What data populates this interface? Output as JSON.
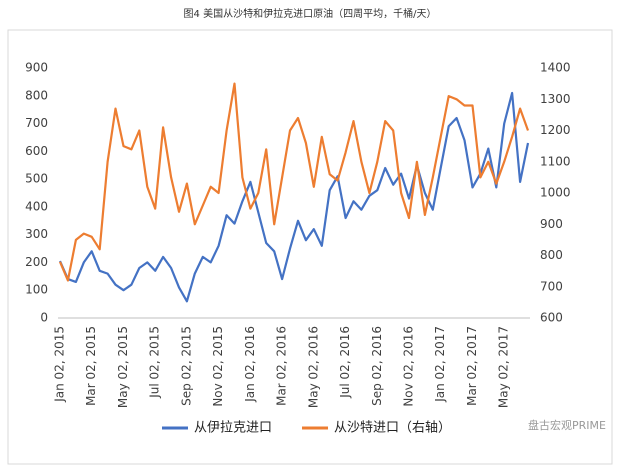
{
  "chart_data": {
    "type": "line",
    "title": "图4  美国从沙特和伊拉克进口原油（四周平均，千桶/天）",
    "categories": [
      "Jan 02, 2015",
      null,
      null,
      null,
      "Mar 02, 2015",
      null,
      null,
      null,
      "May 02, 2015",
      null,
      null,
      null,
      "Jul 02, 2015",
      null,
      null,
      null,
      "Sep 02, 2015",
      null,
      null,
      null,
      "Nov 02, 2015",
      null,
      null,
      null,
      "Jan 02, 2016",
      null,
      null,
      null,
      "Mar 02, 2016",
      null,
      null,
      null,
      "May 02, 2016",
      null,
      null,
      null,
      "Jul 02, 2016",
      null,
      null,
      null,
      "Sep 02, 2016",
      null,
      null,
      null,
      "Nov 02, 2016",
      null,
      null,
      null,
      "Jan 02, 2017",
      null,
      null,
      null,
      "Mar 02, 2017",
      null,
      null,
      null,
      "May 02, 2017",
      null,
      null,
      null
    ],
    "series": [
      {
        "name": "从伊拉克进口",
        "color": "#4472c4",
        "values": [
          205,
          140,
          130,
          200,
          240,
          170,
          160,
          120,
          100,
          120,
          180,
          200,
          170,
          220,
          180,
          110,
          60,
          160,
          220,
          200,
          260,
          370,
          340,
          420,
          490,
          380,
          270,
          240,
          140,
          250,
          350,
          280,
          320,
          260,
          460,
          510,
          360,
          420,
          390,
          440,
          460,
          540,
          480,
          520,
          430,
          550,
          450,
          390,
          540,
          690,
          720,
          640,
          470,
          520,
          610,
          470,
          700,
          810,
          490,
          630
        ]
      },
      {
        "name": "从沙特进口（右轴）",
        "color": "#ed7d31",
        "axis": "y2",
        "values": [
          780,
          720,
          850,
          870,
          860,
          820,
          1100,
          1270,
          1150,
          1140,
          1200,
          1020,
          950,
          1210,
          1050,
          940,
          1030,
          900,
          960,
          1020,
          1000,
          1200,
          1350,
          1050,
          950,
          1000,
          1140,
          900,
          1050,
          1200,
          1240,
          1160,
          1020,
          1180,
          1060,
          1040,
          1130,
          1230,
          1100,
          1000,
          1100,
          1230,
          1200,
          1000,
          920,
          1100,
          930,
          1050,
          1180,
          1310,
          1300,
          1280,
          1280,
          1050,
          1100,
          1030,
          1100,
          1180,
          1270,
          1200
        ]
      }
    ],
    "ylim": [
      0,
      900
    ],
    "yticks": [
      0,
      100,
      200,
      300,
      400,
      500,
      600,
      700,
      800,
      900
    ],
    "y2lim": [
      600,
      1400
    ],
    "y2ticks": [
      600,
      700,
      800,
      900,
      1000,
      1100,
      1200,
      1300,
      1400
    ],
    "grid": false,
    "legend": "bottom",
    "watermark": "盘古宏观PRIME"
  }
}
